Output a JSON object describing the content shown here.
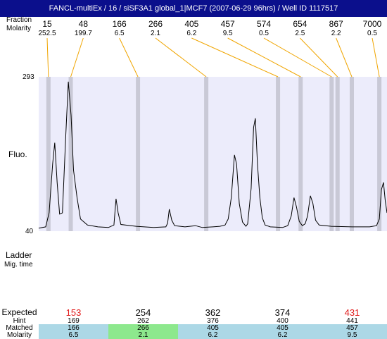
{
  "window": {
    "title": "FANCL-multiEx / 16 / siSF3A1 global_1|MCF7 (2007-06-29 96hrs) / Well ID 1117517"
  },
  "labels": {
    "fraction_size": "Fraction",
    "molarity": "Molarity",
    "fluo": "Fluo.",
    "ladder": "Ladder",
    "mig_time": "Mig. time",
    "y_top": "293",
    "y_bottom": "40",
    "expected": "Expected",
    "hint": "Hint",
    "matched": "Matched",
    "molarity_bottom": "Molarity"
  },
  "colors": {
    "title_bg": "#0b0f8c",
    "plot_bg": "#ececfb",
    "marker_band": "#c9c9d6",
    "leader_line": "#f0a500",
    "expected_highlight": "#e11b1b",
    "matched_bg": "#acd8e6",
    "matched_highlight": "#8de88d"
  },
  "chart_data": {
    "type": "line",
    "ylabel": "Fluo.",
    "ylim": [
      40,
      293
    ],
    "fragments": [
      {
        "size": "15",
        "molarity": "252.5"
      },
      {
        "size": "48",
        "molarity": "199.7"
      },
      {
        "size": "166",
        "molarity": "6.5"
      },
      {
        "size": "266",
        "molarity": "2.1"
      },
      {
        "size": "405",
        "molarity": "6.2"
      },
      {
        "size": "457",
        "molarity": "9.5"
      },
      {
        "size": "574",
        "molarity": "0.5"
      },
      {
        "size": "654",
        "molarity": "2.5"
      },
      {
        "size": "867",
        "molarity": "2.2"
      },
      {
        "size": "7000",
        "molarity": "0.5"
      }
    ],
    "trace": [
      [
        0.0,
        45
      ],
      [
        0.02,
        47
      ],
      [
        0.03,
        70
      ],
      [
        0.04,
        150
      ],
      [
        0.046,
        185
      ],
      [
        0.053,
        120
      ],
      [
        0.06,
        68
      ],
      [
        0.068,
        70
      ],
      [
        0.078,
        200
      ],
      [
        0.085,
        285
      ],
      [
        0.093,
        230
      ],
      [
        0.1,
        140
      ],
      [
        0.11,
        95
      ],
      [
        0.12,
        60
      ],
      [
        0.14,
        50
      ],
      [
        0.17,
        47
      ],
      [
        0.2,
        46
      ],
      [
        0.2,
        46
      ],
      [
        0.216,
        50
      ],
      [
        0.222,
        93
      ],
      [
        0.228,
        70
      ],
      [
        0.236,
        51
      ],
      [
        0.28,
        48
      ],
      [
        0.33,
        46
      ],
      [
        0.365,
        47
      ],
      [
        0.37,
        53
      ],
      [
        0.375,
        76
      ],
      [
        0.382,
        58
      ],
      [
        0.39,
        49
      ],
      [
        0.42,
        47
      ],
      [
        0.45,
        49
      ],
      [
        0.47,
        46
      ],
      [
        0.5,
        47
      ],
      [
        0.52,
        48
      ],
      [
        0.535,
        50
      ],
      [
        0.544,
        60
      ],
      [
        0.553,
        95
      ],
      [
        0.562,
        165
      ],
      [
        0.568,
        150
      ],
      [
        0.576,
        85
      ],
      [
        0.585,
        55
      ],
      [
        0.595,
        48
      ],
      [
        0.6,
        52
      ],
      [
        0.61,
        110
      ],
      [
        0.617,
        210
      ],
      [
        0.622,
        225
      ],
      [
        0.628,
        150
      ],
      [
        0.635,
        95
      ],
      [
        0.642,
        62
      ],
      [
        0.65,
        50
      ],
      [
        0.665,
        47
      ],
      [
        0.7,
        46
      ],
      [
        0.715,
        49
      ],
      [
        0.725,
        65
      ],
      [
        0.733,
        95
      ],
      [
        0.74,
        80
      ],
      [
        0.748,
        56
      ],
      [
        0.757,
        49
      ],
      [
        0.765,
        52
      ],
      [
        0.772,
        65
      ],
      [
        0.78,
        98
      ],
      [
        0.787,
        86
      ],
      [
        0.795,
        58
      ],
      [
        0.805,
        50
      ],
      [
        0.84,
        48
      ],
      [
        0.9,
        47
      ],
      [
        0.95,
        47
      ],
      [
        0.97,
        49
      ],
      [
        0.978,
        60
      ],
      [
        0.984,
        108
      ],
      [
        0.99,
        120
      ],
      [
        0.995,
        90
      ],
      [
        1.0,
        70
      ]
    ],
    "marker_bands": [
      0.028,
      0.092,
      0.285,
      0.481,
      0.687,
      0.752,
      0.841,
      0.858,
      0.899,
      0.978
    ]
  },
  "table": {
    "columns": [
      {
        "expected": "153",
        "hint": "169",
        "matched": "166",
        "molarity": "6.5",
        "expected_highlight": true,
        "matched_highlight": false
      },
      {
        "expected": "254",
        "hint": "262",
        "matched": "266",
        "molarity": "2.1",
        "expected_highlight": false,
        "matched_highlight": true
      },
      {
        "expected": "362",
        "hint": "376",
        "matched": "405",
        "molarity": "6.2",
        "expected_highlight": false,
        "matched_highlight": false
      },
      {
        "expected": "374",
        "hint": "400",
        "matched": "405",
        "molarity": "6.2",
        "expected_highlight": false,
        "matched_highlight": false
      },
      {
        "expected": "431",
        "hint": "441",
        "matched": "457",
        "molarity": "9.5",
        "expected_highlight": true,
        "matched_highlight": false
      }
    ]
  }
}
